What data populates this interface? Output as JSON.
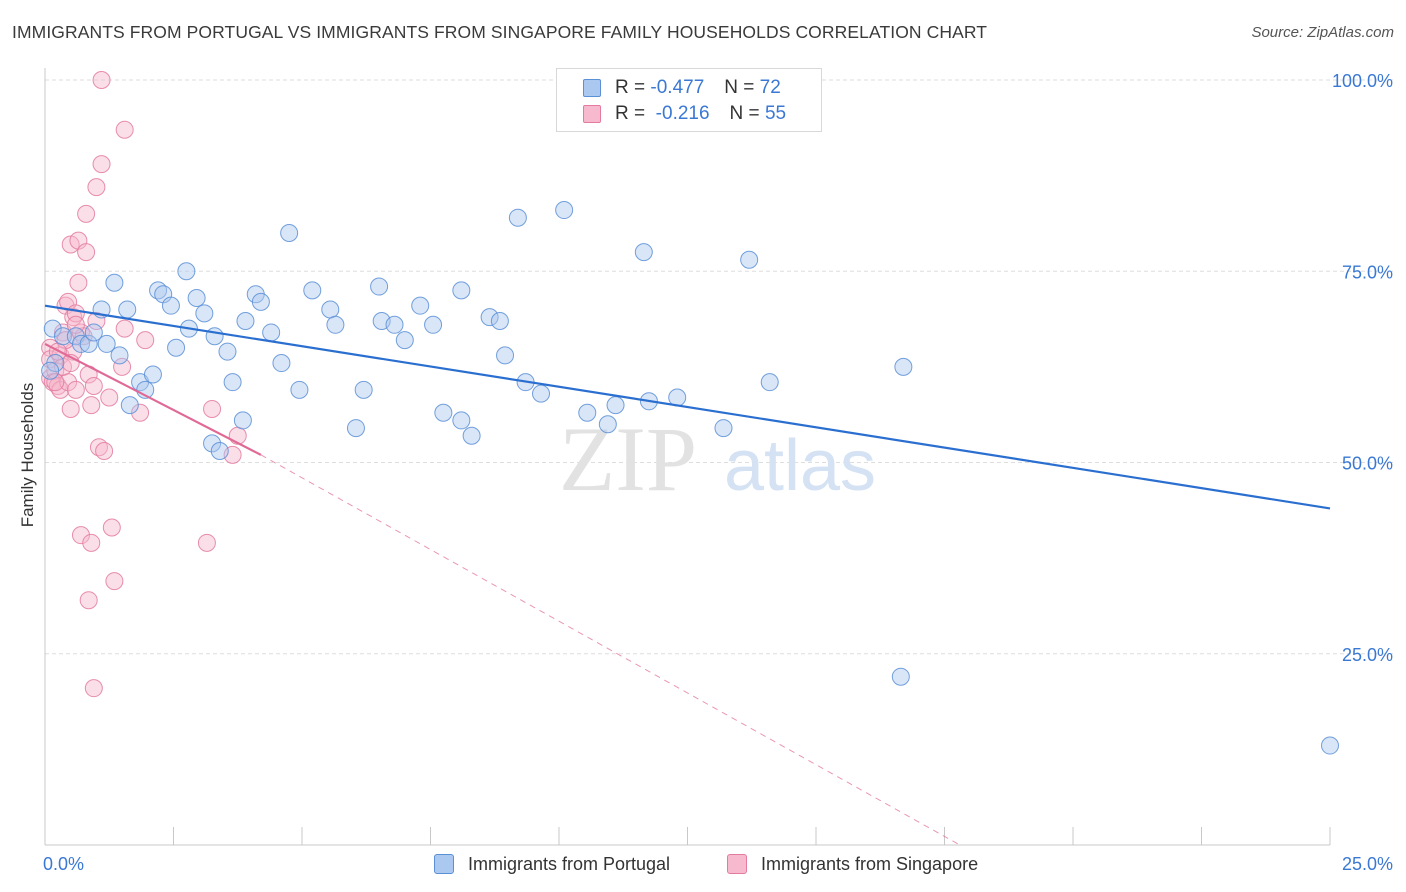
{
  "title": "IMMIGRANTS FROM PORTUGAL VS IMMIGRANTS FROM SINGAPORE FAMILY HOUSEHOLDS CORRELATION CHART",
  "source": "Source: ZipAtlas.com",
  "watermark": {
    "zip": "ZIP",
    "atlas": "atlas"
  },
  "legend": {
    "rows": [
      {
        "r_label": "R =",
        "r_value": "-0.477",
        "n_label": "N =",
        "n_value": "72"
      },
      {
        "r_label": "R =",
        "r_value": "-0.216",
        "n_label": "N =",
        "n_value": "55"
      }
    ]
  },
  "colors": {
    "portugal_fill": "#aac8f0",
    "portugal_stroke": "#5b8fd6",
    "portugal_line": "#2a6fd0",
    "singapore_fill": "#f7b9cd",
    "singapore_stroke": "#e37aa0",
    "singapore_line": "#e06a96",
    "axis_label": "#3a78d4",
    "grid": "#dedede"
  },
  "chart_data": {
    "type": "scatter",
    "title": "IMMIGRANTS FROM PORTUGAL VS IMMIGRANTS FROM SINGAPORE FAMILY HOUSEHOLDS CORRELATION CHART",
    "xlabel": "",
    "ylabel": "Family Households",
    "xlim": [
      0,
      25
    ],
    "ylim": [
      0,
      100
    ],
    "x_tick_labels": [
      "0.0%",
      "25.0%"
    ],
    "y_ticks": [
      25,
      50,
      75,
      100
    ],
    "y_tick_labels": [
      "25.0%",
      "50.0%",
      "75.0%",
      "100.0%"
    ],
    "grid": true,
    "legend_position": "top-center",
    "series": [
      {
        "name": "Immigrants from Portugal",
        "points": [
          [
            0.15,
            67.5
          ],
          [
            0.2,
            63.0
          ],
          [
            0.35,
            66.5
          ],
          [
            0.6,
            66.5
          ],
          [
            0.7,
            65.5
          ],
          [
            0.85,
            65.5
          ],
          [
            0.95,
            67.0
          ],
          [
            1.1,
            70.0
          ],
          [
            1.2,
            65.5
          ],
          [
            1.35,
            73.5
          ],
          [
            1.45,
            64.0
          ],
          [
            1.6,
            70.0
          ],
          [
            1.65,
            57.5
          ],
          [
            1.85,
            60.5
          ],
          [
            1.95,
            59.5
          ],
          [
            2.1,
            61.5
          ],
          [
            2.2,
            72.5
          ],
          [
            2.3,
            72.0
          ],
          [
            2.45,
            70.5
          ],
          [
            2.55,
            65.0
          ],
          [
            2.75,
            75.0
          ],
          [
            2.8,
            67.5
          ],
          [
            2.95,
            71.5
          ],
          [
            3.1,
            69.5
          ],
          [
            3.25,
            52.5
          ],
          [
            3.3,
            66.5
          ],
          [
            3.4,
            51.5
          ],
          [
            3.55,
            64.5
          ],
          [
            3.65,
            60.5
          ],
          [
            3.85,
            55.5
          ],
          [
            3.9,
            68.5
          ],
          [
            4.1,
            72.0
          ],
          [
            4.2,
            71.0
          ],
          [
            4.4,
            67.0
          ],
          [
            4.6,
            63.0
          ],
          [
            4.75,
            80.0
          ],
          [
            4.95,
            59.5
          ],
          [
            5.2,
            72.5
          ],
          [
            5.55,
            70.0
          ],
          [
            5.65,
            68.0
          ],
          [
            6.05,
            54.5
          ],
          [
            6.2,
            59.5
          ],
          [
            6.5,
            73.0
          ],
          [
            6.55,
            68.5
          ],
          [
            6.8,
            68.0
          ],
          [
            7.0,
            66.0
          ],
          [
            7.3,
            70.5
          ],
          [
            7.55,
            68.0
          ],
          [
            7.75,
            56.5
          ],
          [
            8.1,
            72.5
          ],
          [
            8.1,
            55.5
          ],
          [
            8.3,
            53.5
          ],
          [
            8.65,
            69.0
          ],
          [
            8.85,
            68.5
          ],
          [
            8.95,
            64.0
          ],
          [
            9.2,
            82.0
          ],
          [
            9.35,
            60.5
          ],
          [
            9.65,
            59.0
          ],
          [
            10.1,
            83.0
          ],
          [
            10.55,
            56.5
          ],
          [
            10.95,
            55.0
          ],
          [
            11.1,
            57.5
          ],
          [
            11.65,
            77.5
          ],
          [
            11.75,
            58.0
          ],
          [
            12.3,
            58.5
          ],
          [
            13.2,
            54.5
          ],
          [
            13.7,
            76.5
          ],
          [
            14.1,
            60.5
          ],
          [
            16.7,
            62.5
          ],
          [
            16.65,
            22.0
          ],
          [
            25.0,
            13.0
          ],
          [
            0.1,
            62.0
          ]
        ],
        "trend": {
          "x": [
            0,
            25
          ],
          "y": [
            70.5,
            44.0
          ]
        }
      },
      {
        "name": "Immigrants from Singapore",
        "points": [
          [
            0.1,
            65.0
          ],
          [
            0.1,
            63.5
          ],
          [
            0.1,
            61.0
          ],
          [
            0.15,
            60.5
          ],
          [
            0.2,
            62.0
          ],
          [
            0.25,
            60.0
          ],
          [
            0.3,
            64.0
          ],
          [
            0.3,
            59.5
          ],
          [
            0.35,
            67.0
          ],
          [
            0.4,
            70.5
          ],
          [
            0.45,
            60.5
          ],
          [
            0.45,
            71.0
          ],
          [
            0.5,
            57.0
          ],
          [
            0.5,
            78.5
          ],
          [
            0.55,
            64.5
          ],
          [
            0.55,
            69.0
          ],
          [
            0.6,
            69.5
          ],
          [
            0.6,
            59.5
          ],
          [
            0.65,
            79.0
          ],
          [
            0.65,
            73.5
          ],
          [
            0.7,
            67.0
          ],
          [
            0.7,
            40.5
          ],
          [
            0.75,
            66.5
          ],
          [
            0.8,
            82.5
          ],
          [
            0.8,
            77.5
          ],
          [
            0.85,
            61.5
          ],
          [
            0.85,
            32.0
          ],
          [
            0.9,
            57.5
          ],
          [
            0.9,
            39.5
          ],
          [
            0.95,
            60.0
          ],
          [
            0.95,
            20.5
          ],
          [
            1.0,
            68.5
          ],
          [
            1.0,
            86.0
          ],
          [
            1.05,
            52.0
          ],
          [
            1.1,
            89.0
          ],
          [
            1.15,
            51.5
          ],
          [
            1.25,
            58.5
          ],
          [
            1.3,
            41.5
          ],
          [
            1.35,
            34.5
          ],
          [
            1.5,
            62.5
          ],
          [
            1.55,
            67.5
          ],
          [
            1.55,
            93.5
          ],
          [
            1.1,
            100.0
          ],
          [
            1.85,
            56.5
          ],
          [
            1.95,
            66.0
          ],
          [
            3.15,
            39.5
          ],
          [
            3.25,
            57.0
          ],
          [
            3.65,
            51.0
          ],
          [
            3.75,
            53.5
          ],
          [
            0.35,
            62.5
          ],
          [
            0.4,
            66.0
          ],
          [
            0.5,
            63.0
          ],
          [
            0.2,
            60.5
          ],
          [
            0.6,
            68.0
          ],
          [
            0.25,
            64.5
          ]
        ],
        "trend": {
          "x": [
            0,
            4.2
          ],
          "y": [
            65.5,
            51.0
          ]
        },
        "trend_extended": {
          "x": [
            4.2,
            17.8
          ],
          "y": [
            51.0,
            0
          ]
        }
      }
    ]
  },
  "bottom_legend": [
    {
      "label": "Immigrants from Portugal"
    },
    {
      "label": "Immigrants from Singapore"
    }
  ]
}
